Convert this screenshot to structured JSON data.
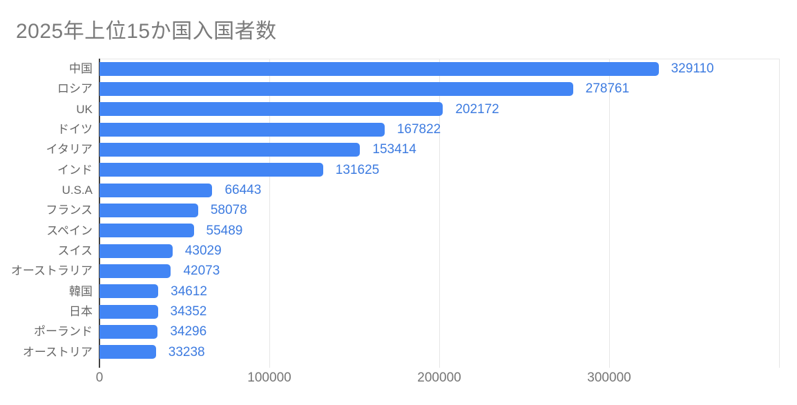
{
  "title": "2025年上位15か国入国者数",
  "colors": {
    "bar": "#4285f4",
    "value_label": "#3d7be0",
    "title": "#7a7a7a",
    "category_label": "#666666",
    "axis_tick_label": "#757575",
    "gridline": "#e6e6e6",
    "axis_zero_line": "#424242",
    "background": "#ffffff"
  },
  "chart_data": {
    "type": "bar",
    "orientation": "horizontal",
    "title": "2025年上位15か国入国者数",
    "categories": [
      "中国",
      "ロシア",
      "UK",
      "ドイツ",
      "イタリア",
      "インド",
      "U.S.A",
      "フランス",
      "スペイン",
      "スイス",
      "オーストラリア",
      "韓国",
      "日本",
      "ポーランド",
      "オーストリア"
    ],
    "values": [
      329110,
      278761,
      202172,
      167822,
      153414,
      131625,
      66443,
      58078,
      55489,
      43029,
      42073,
      34612,
      34352,
      34296,
      33238
    ],
    "value_labels_shown": true,
    "legend": "none",
    "grid": "vertical-only",
    "x_axis": {
      "min": 0,
      "max": 400000,
      "gridlines": [
        100000,
        200000,
        300000,
        400000
      ],
      "ticks": [
        0,
        100000,
        200000,
        300000
      ],
      "tick_labels": [
        "0",
        "100000",
        "200000",
        "300000"
      ]
    }
  }
}
